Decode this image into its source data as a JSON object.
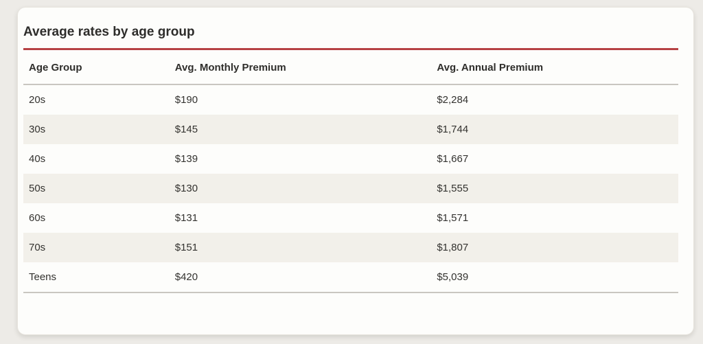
{
  "card": {
    "title": "Average rates by age group"
  },
  "table": {
    "columns": [
      "Age Group",
      "Avg. Monthly Premium",
      "Avg. Annual Premium"
    ],
    "rows": [
      [
        "20s",
        "$190",
        "$2,284"
      ],
      [
        "30s",
        "$145",
        "$1,744"
      ],
      [
        "40s",
        "$139",
        "$1,667"
      ],
      [
        "50s",
        "$130",
        "$1,555"
      ],
      [
        "60s",
        "$131",
        "$1,571"
      ],
      [
        "70s",
        "$151",
        "$1,807"
      ],
      [
        "Teens",
        "$420",
        "$5,039"
      ]
    ]
  },
  "colors": {
    "accent_red": "#b64143",
    "stripe_bg": "#f2f0ea",
    "card_bg": "#fdfdfb",
    "page_bg": "#edebe7",
    "text": "#33322f",
    "divider_gray": "#c9c6c0"
  },
  "chart_data": {
    "type": "table",
    "title": "Average rates by age group",
    "columns": [
      "Age Group",
      "Avg. Monthly Premium",
      "Avg. Annual Premium"
    ],
    "rows": [
      {
        "age_group": "20s",
        "avg_monthly_premium": 190,
        "avg_annual_premium": 2284
      },
      {
        "age_group": "30s",
        "avg_monthly_premium": 145,
        "avg_annual_premium": 1744
      },
      {
        "age_group": "40s",
        "avg_monthly_premium": 139,
        "avg_annual_premium": 1667
      },
      {
        "age_group": "50s",
        "avg_monthly_premium": 130,
        "avg_annual_premium": 1555
      },
      {
        "age_group": "60s",
        "avg_monthly_premium": 131,
        "avg_annual_premium": 1571
      },
      {
        "age_group": "70s",
        "avg_monthly_premium": 151,
        "avg_annual_premium": 1807
      },
      {
        "age_group": "Teens",
        "avg_monthly_premium": 420,
        "avg_annual_premium": 5039
      }
    ],
    "layout": {
      "zebra_striping": true,
      "accent_rule_color": "#b64143",
      "legend": "none"
    }
  }
}
